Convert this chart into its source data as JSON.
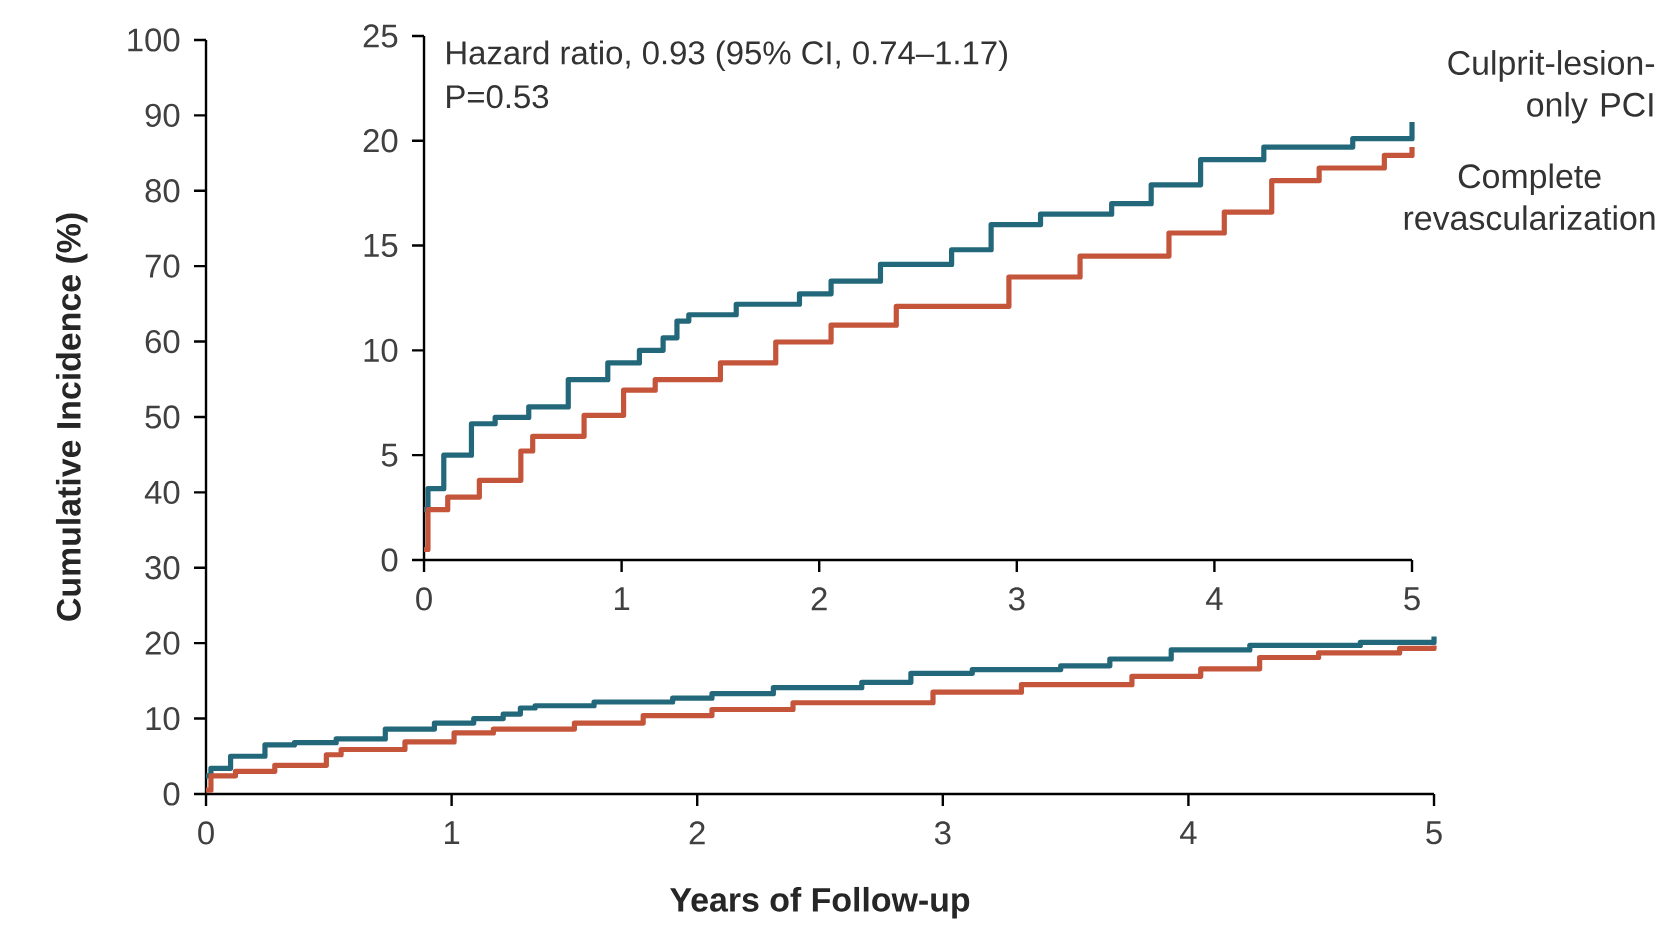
{
  "chart_data": [
    {
      "type": "step",
      "xlabel": "Years of Follow-up",
      "ylabel": "Cumulative Incidence (%)",
      "xlim": [
        0,
        5
      ],
      "ylim": [
        0,
        100
      ],
      "xticks": [
        0,
        1,
        2,
        3,
        4,
        5
      ],
      "yticks": [
        0,
        10,
        20,
        30,
        40,
        50,
        60,
        70,
        80,
        90,
        100
      ],
      "series": [
        {
          "color": "#23687a",
          "x": [
            0,
            0.02,
            0.1,
            0.24,
            0.36,
            0.53,
            0.73,
            0.93,
            1.09,
            1.21,
            1.28,
            1.34,
            1.58,
            1.9,
            2.06,
            2.31,
            2.67,
            2.87,
            3.12,
            3.48,
            3.68,
            3.93,
            4.25,
            4.7,
            5.0
          ],
          "values": [
            2.4,
            3.4,
            5.0,
            6.5,
            6.8,
            7.3,
            8.6,
            9.4,
            10.0,
            10.6,
            11.4,
            11.7,
            12.2,
            12.7,
            13.3,
            14.1,
            14.8,
            16.0,
            16.5,
            17.0,
            17.9,
            19.1,
            19.7,
            20.1,
            20.9
          ]
        },
        {
          "color": "#c4553a",
          "x": [
            0,
            0.02,
            0.12,
            0.28,
            0.49,
            0.55,
            0.81,
            1.01,
            1.17,
            1.5,
            1.78,
            2.06,
            2.39,
            2.96,
            3.32,
            3.77,
            4.05,
            4.29,
            4.53,
            4.86,
            5.0
          ],
          "values": [
            0.5,
            2.4,
            3.0,
            3.8,
            5.2,
            5.9,
            6.9,
            8.1,
            8.6,
            9.4,
            10.4,
            11.2,
            12.1,
            13.5,
            14.5,
            15.6,
            16.6,
            18.1,
            18.7,
            19.3,
            19.7
          ]
        }
      ]
    },
    {
      "type": "step",
      "xlim": [
        0,
        5
      ],
      "ylim": [
        0,
        25
      ],
      "xticks": [
        0,
        1,
        2,
        3,
        4,
        5
      ],
      "yticks": [
        0,
        5,
        10,
        15,
        20,
        25
      ],
      "annotations": [
        "Hazard ratio, 0.93 (95% CI, 0.74–1.17)",
        "P=0.53"
      ],
      "series": [
        {
          "name": "Culprit-lesion-only PCI",
          "color": "#23687a",
          "x": [
            0,
            0.02,
            0.1,
            0.24,
            0.36,
            0.53,
            0.73,
            0.93,
            1.09,
            1.21,
            1.28,
            1.34,
            1.58,
            1.9,
            2.06,
            2.31,
            2.67,
            2.87,
            3.12,
            3.48,
            3.68,
            3.93,
            4.25,
            4.7,
            5.0
          ],
          "values": [
            2.4,
            3.4,
            5.0,
            6.5,
            6.8,
            7.3,
            8.6,
            9.4,
            10.0,
            10.6,
            11.4,
            11.7,
            12.2,
            12.7,
            13.3,
            14.1,
            14.8,
            16.0,
            16.5,
            17.0,
            17.9,
            19.1,
            19.7,
            20.1,
            20.9
          ]
        },
        {
          "name": "Complete revascularization",
          "color": "#c4553a",
          "x": [
            0,
            0.02,
            0.12,
            0.28,
            0.49,
            0.55,
            0.81,
            1.01,
            1.17,
            1.5,
            1.78,
            2.06,
            2.39,
            2.96,
            3.32,
            3.77,
            4.05,
            4.29,
            4.53,
            4.86,
            5.0
          ],
          "values": [
            0.5,
            2.4,
            3.0,
            3.8,
            5.2,
            5.9,
            6.9,
            8.1,
            8.6,
            9.4,
            10.4,
            11.2,
            12.1,
            13.5,
            14.5,
            15.6,
            16.6,
            18.1,
            18.7,
            19.3,
            19.7
          ]
        }
      ]
    }
  ]
}
